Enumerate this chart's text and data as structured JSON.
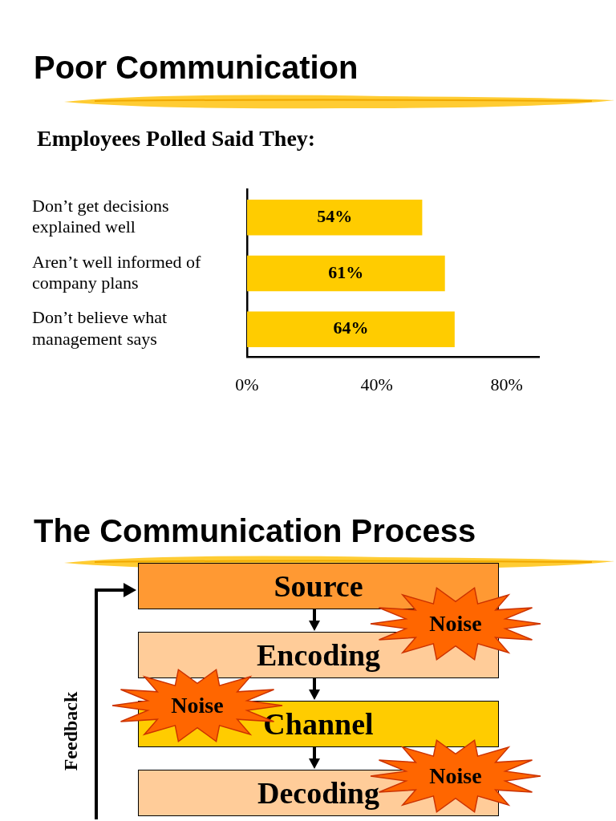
{
  "chart_data": [
    {
      "type": "bar",
      "orientation": "horizontal",
      "title": "Poor Communication",
      "subtitle": "Employees Polled Said They:",
      "categories": [
        "Don’t get decisions explained well",
        "Aren’t well informed of company plans",
        "Don’t believe what management says"
      ],
      "values": [
        54,
        61,
        64
      ],
      "color": "#ffcc00",
      "value_labels": [
        "54%",
        "61%",
        "64%"
      ],
      "xlim": [
        0,
        90
      ],
      "xticks": [
        {
          "value": 0,
          "label": "0%"
        },
        {
          "value": 40,
          "label": "40%"
        },
        {
          "value": 80,
          "label": "80%"
        }
      ]
    },
    {
      "type": "other",
      "title": "The Communication Process",
      "annotations": [
        "Source",
        "Encoding",
        "Channel",
        "Decoding",
        "Noise",
        "Noise",
        "Noise",
        "Feedback"
      ]
    }
  ]
}
